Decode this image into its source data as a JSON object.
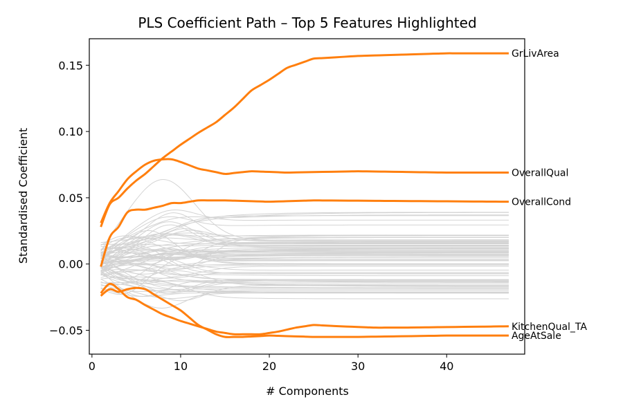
{
  "chart_data": {
    "type": "line",
    "title": "PLS Coefficient Path – Top 5 Features Highlighted",
    "xlabel": "# Components",
    "ylabel": "Standardised Coefficient",
    "xlim": [
      -0.3,
      48.8
    ],
    "ylim": [
      -0.068,
      0.17
    ],
    "x_ticks": [
      0,
      10,
      20,
      30,
      40
    ],
    "y_ticks": [
      -0.05,
      0.0,
      0.05,
      0.1,
      0.15
    ],
    "y_tick_labels": [
      "−0.05",
      "0.00",
      "0.05",
      "0.10",
      "0.15"
    ],
    "grid": false,
    "legend": "none",
    "highlight_color": "#ff7f0e",
    "background_color": "#d3d3d3",
    "x_max": 47,
    "highlighted": [
      {
        "name": "GrLivArea",
        "points": [
          [
            1,
            0.028
          ],
          [
            2,
            0.045
          ],
          [
            3,
            0.05
          ],
          [
            4,
            0.057
          ],
          [
            5,
            0.063
          ],
          [
            6,
            0.068
          ],
          [
            7,
            0.074
          ],
          [
            8,
            0.08
          ],
          [
            10,
            0.09
          ],
          [
            12,
            0.099
          ],
          [
            14,
            0.107
          ],
          [
            16,
            0.118
          ],
          [
            18,
            0.131
          ],
          [
            20,
            0.139
          ],
          [
            22,
            0.148
          ],
          [
            25,
            0.155
          ],
          [
            30,
            0.157
          ],
          [
            35,
            0.158
          ],
          [
            40,
            0.159
          ],
          [
            47,
            0.159
          ]
        ]
      },
      {
        "name": "OverallQual",
        "points": [
          [
            1,
            0.031
          ],
          [
            2,
            0.046
          ],
          [
            3,
            0.055
          ],
          [
            4,
            0.064
          ],
          [
            5,
            0.07
          ],
          [
            6,
            0.075
          ],
          [
            7,
            0.078
          ],
          [
            8,
            0.079
          ],
          [
            9,
            0.079
          ],
          [
            10,
            0.077
          ],
          [
            12,
            0.072
          ],
          [
            15,
            0.068
          ],
          [
            18,
            0.07
          ],
          [
            22,
            0.069
          ],
          [
            30,
            0.07
          ],
          [
            40,
            0.069
          ],
          [
            47,
            0.069
          ]
        ]
      },
      {
        "name": "OverallCond",
        "points": [
          [
            1,
            -0.002
          ],
          [
            2,
            0.02
          ],
          [
            3,
            0.028
          ],
          [
            4,
            0.039
          ],
          [
            5,
            0.041
          ],
          [
            6,
            0.041
          ],
          [
            8,
            0.044
          ],
          [
            9,
            0.046
          ],
          [
            10,
            0.046
          ],
          [
            12,
            0.048
          ],
          [
            15,
            0.048
          ],
          [
            20,
            0.047
          ],
          [
            25,
            0.048
          ],
          [
            47,
            0.047
          ]
        ]
      },
      {
        "name": "KitchenQual_TA",
        "points": [
          [
            1,
            -0.022
          ],
          [
            2,
            -0.015
          ],
          [
            3,
            -0.019
          ],
          [
            4,
            -0.025
          ],
          [
            5,
            -0.027
          ],
          [
            6,
            -0.031
          ],
          [
            8,
            -0.038
          ],
          [
            10,
            -0.043
          ],
          [
            12,
            -0.047
          ],
          [
            14,
            -0.051
          ],
          [
            16,
            -0.053
          ],
          [
            17,
            -0.053
          ],
          [
            19,
            -0.053
          ],
          [
            21,
            -0.051
          ],
          [
            23,
            -0.048
          ],
          [
            25,
            -0.046
          ],
          [
            28,
            -0.047
          ],
          [
            32,
            -0.048
          ],
          [
            35,
            -0.048
          ],
          [
            47,
            -0.047
          ]
        ]
      },
      {
        "name": "AgeAtSale",
        "points": [
          [
            1,
            -0.024
          ],
          [
            2,
            -0.019
          ],
          [
            3,
            -0.021
          ],
          [
            4,
            -0.019
          ],
          [
            5,
            -0.018
          ],
          [
            6,
            -0.019
          ],
          [
            8,
            -0.027
          ],
          [
            10,
            -0.035
          ],
          [
            12,
            -0.046
          ],
          [
            14,
            -0.053
          ],
          [
            15,
            -0.055
          ],
          [
            17,
            -0.055
          ],
          [
            20,
            -0.054
          ],
          [
            25,
            -0.055
          ],
          [
            30,
            -0.055
          ],
          [
            40,
            -0.054
          ],
          [
            47,
            -0.054
          ]
        ]
      }
    ]
  }
}
